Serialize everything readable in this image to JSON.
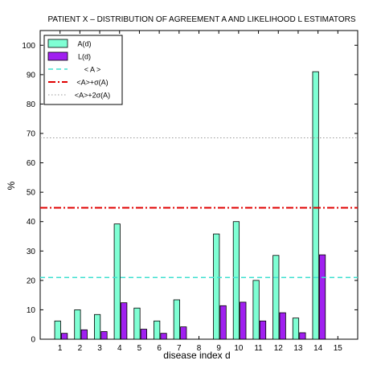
{
  "chart_data": {
    "type": "bar",
    "title": "PATIENT X –   DISTRIBUTION OF AGREEMENT A AND LIKELIHOOD L ESTIMATORS",
    "xlabel": "disease index d",
    "ylabel": "%",
    "x": [
      1,
      2,
      3,
      4,
      5,
      6,
      7,
      8,
      9,
      10,
      11,
      12,
      13,
      14,
      15
    ],
    "xlim": [
      0,
      16
    ],
    "ylim": [
      0,
      105
    ],
    "yticks": [
      0,
      10,
      20,
      30,
      40,
      50,
      60,
      70,
      80,
      90,
      100
    ],
    "grid": false,
    "legend_position": "top-left",
    "series": [
      {
        "name": "A(d)",
        "color": "#7fffd4",
        "values": [
          6.2,
          10.0,
          8.4,
          39.2,
          10.6,
          6.2,
          13.4,
          0,
          35.8,
          40.0,
          20.0,
          28.5,
          7.2,
          91.0,
          0
        ]
      },
      {
        "name": "L(d)",
        "color": "#a020f0",
        "values": [
          2.0,
          3.2,
          2.6,
          12.4,
          3.4,
          2.0,
          4.2,
          0,
          11.4,
          12.6,
          6.2,
          9.0,
          2.2,
          28.7,
          0
        ]
      }
    ],
    "reference_lines": [
      {
        "name": "< A >",
        "value": 21.0,
        "color": "#40e0d0",
        "style": "dashed"
      },
      {
        "name": "<A>+σ(A)",
        "value": 44.7,
        "color": "#e00000",
        "style": "dash-dot"
      },
      {
        "name": "<A>+2σ(A)",
        "value": 68.5,
        "color": "#9a9a9a",
        "style": "dotted"
      }
    ]
  }
}
